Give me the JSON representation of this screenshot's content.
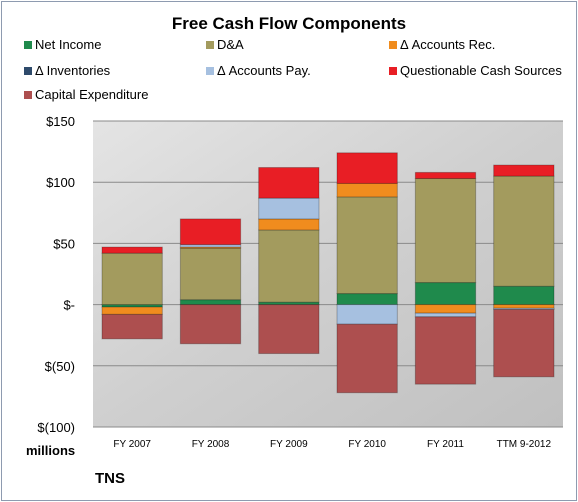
{
  "chart_data": {
    "type": "bar",
    "stacked": true,
    "title": "Free Cash Flow Components",
    "categories": [
      "FY 2007",
      "FY 2008",
      "FY 2009",
      "FY 2010",
      "FY 2011",
      "TTM 9-2012"
    ],
    "ylim": [
      -100,
      150
    ],
    "y_ticks": [
      150,
      100,
      50,
      0,
      -50,
      -100
    ],
    "y_tick_labels": [
      "$150",
      "$100",
      "$50",
      "$-",
      "$(50)",
      "$(100)"
    ],
    "units_label": "millions",
    "grid": true,
    "legend_position": "top",
    "series": [
      {
        "name": "Net Income",
        "color": "#1f8a4c",
        "values": [
          -2,
          4,
          2,
          9,
          18,
          15
        ]
      },
      {
        "name": "D&A",
        "color": "#a39b5e",
        "values": [
          42,
          42,
          59,
          79,
          85,
          90
        ]
      },
      {
        "name": "Δ Accounts Rec.",
        "color": "#f08c1e",
        "values": [
          -6,
          1,
          9,
          11,
          -7,
          -3
        ]
      },
      {
        "name": "Δ Inventories",
        "color": "#2e4a6b",
        "values": [
          0,
          0,
          0,
          0,
          0,
          0
        ]
      },
      {
        "name": "Δ Accounts Pay.",
        "color": "#a6c0e0",
        "values": [
          0,
          2,
          17,
          -16,
          -3,
          -1
        ]
      },
      {
        "name": "Questionable Cash Sources",
        "color": "#e81e25",
        "values": [
          5,
          21,
          25,
          25,
          5,
          9
        ]
      },
      {
        "name": "Capital Expenditure",
        "color": "#ad4f4f",
        "values": [
          -20,
          -32,
          -40,
          -56,
          -55,
          -55
        ]
      }
    ]
  },
  "company": "TNS"
}
